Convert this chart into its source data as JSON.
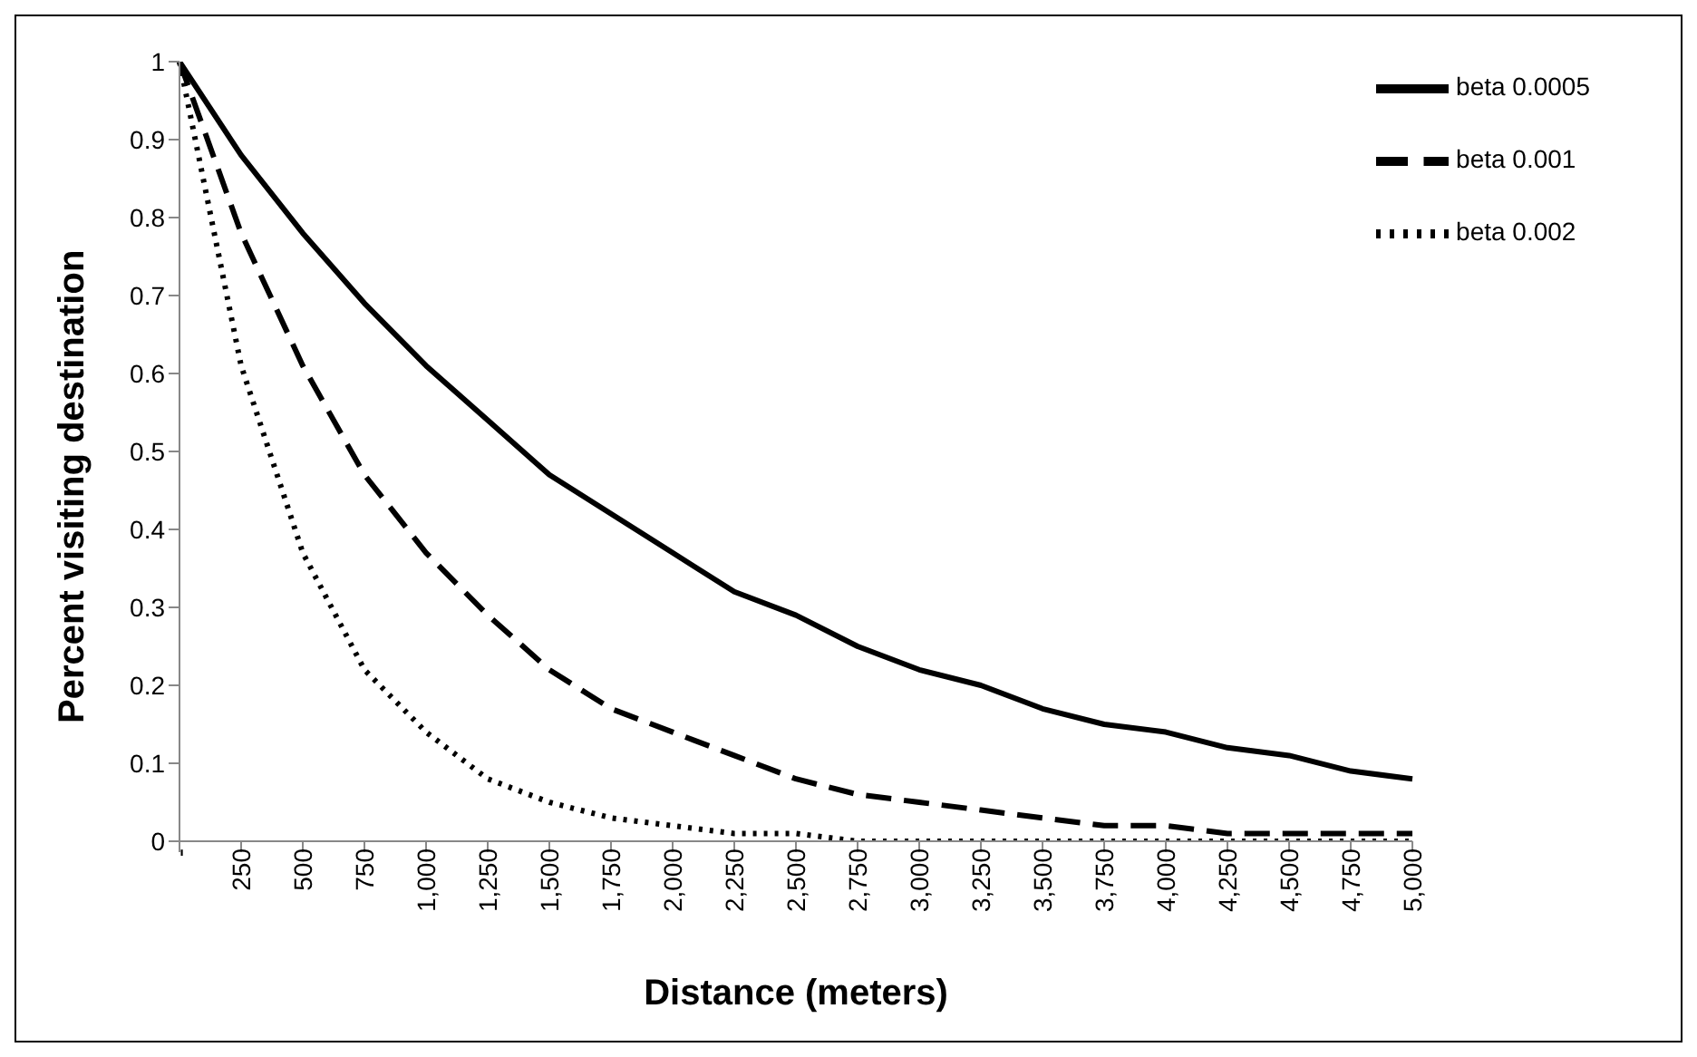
{
  "chart_data": {
    "type": "line",
    "xlabel": "Distance (meters)",
    "ylabel": "Percent visiting destination",
    "categories": [
      "-",
      "250",
      "500",
      "750",
      "1,000",
      "1,250",
      "1,500",
      "1,750",
      "2,000",
      "2,250",
      "2,500",
      "2,750",
      "3,000",
      "3,250",
      "3,500",
      "3,750",
      "4,000",
      "4,250",
      "4,500",
      "4,750",
      "5,000"
    ],
    "series": [
      {
        "name": "beta 0.0005",
        "color": "#000000",
        "line_style": "solid",
        "values": [
          1,
          0.88,
          0.78,
          0.69,
          0.61,
          0.54,
          0.47,
          0.42,
          0.37,
          0.32,
          0.29,
          0.25,
          0.22,
          0.2,
          0.17,
          0.15,
          0.14,
          0.12,
          0.11,
          0.09,
          0.08
        ]
      },
      {
        "name": "beta 0.001",
        "color": "#000000",
        "line_style": "dashed",
        "values": [
          1,
          0.78,
          0.61,
          0.47,
          0.37,
          0.29,
          0.22,
          0.17,
          0.14,
          0.11,
          0.08,
          0.06,
          0.05,
          0.04,
          0.03,
          0.02,
          0.02,
          0.01,
          0.01,
          0.01,
          0.01
        ]
      },
      {
        "name": "beta 0.002",
        "color": "#000000",
        "line_style": "dotted",
        "values": [
          1,
          0.61,
          0.37,
          0.22,
          0.14,
          0.08,
          0.05,
          0.03,
          0.02,
          0.01,
          0.01,
          0,
          0,
          0,
          0,
          0,
          0,
          0,
          0,
          0,
          0
        ]
      }
    ],
    "ylim": [
      0,
      1
    ],
    "yticks": [
      0,
      0.1,
      0.2,
      0.3,
      0.4,
      0.5,
      0.6,
      0.7,
      0.8,
      0.9,
      1
    ],
    "grid": false,
    "legend": "top right",
    "marker": "none"
  }
}
